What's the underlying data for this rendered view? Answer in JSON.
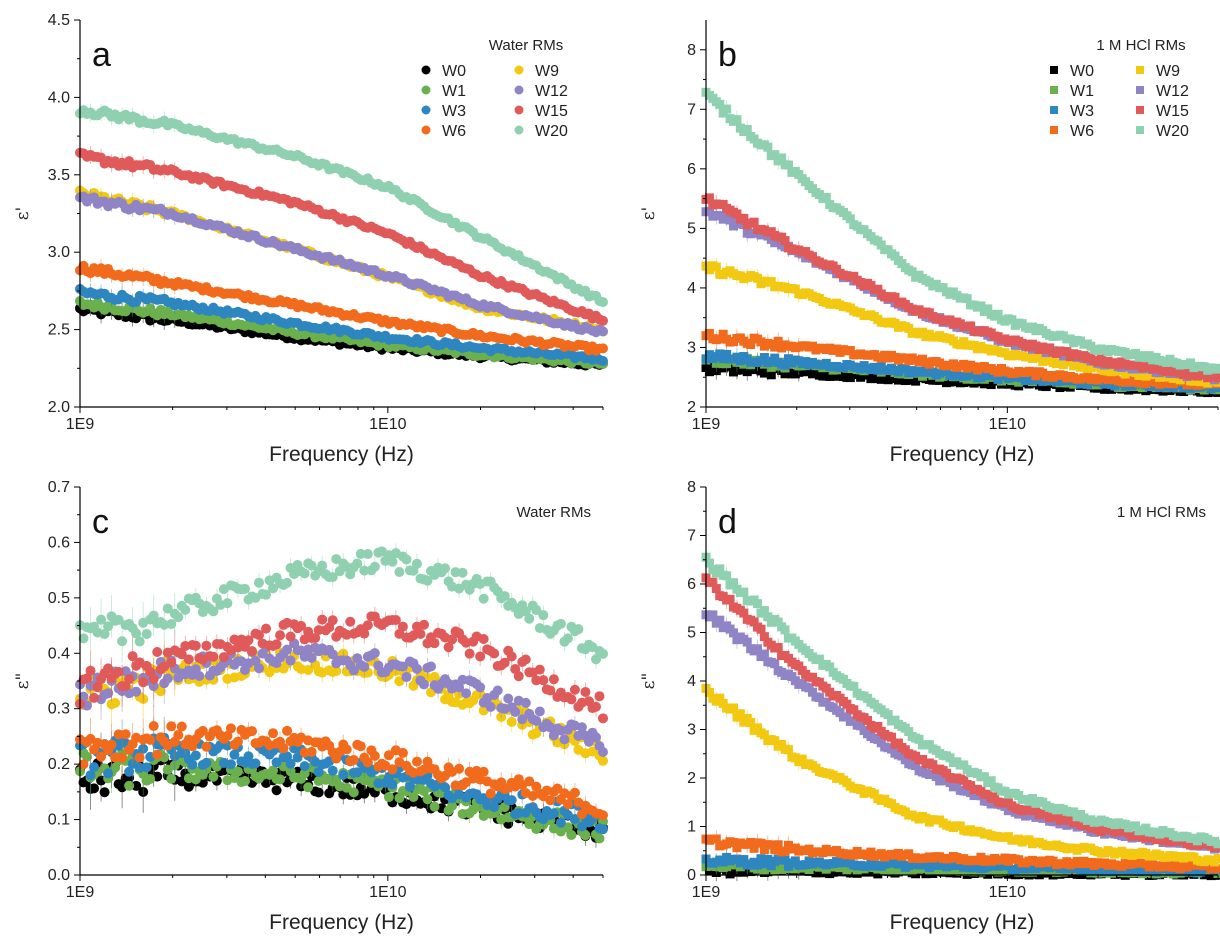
{
  "chart_data": [
    {
      "panel_label": "a",
      "type": "scatter",
      "marker": "circle",
      "x_scale": "log",
      "xlim": [
        1000000000.0,
        50000000000.0
      ],
      "ylim": [
        2.0,
        4.5
      ],
      "xlabel": "Frequency (Hz)",
      "ylabel": "ε'",
      "x_ticks": [
        1000000000.0,
        10000000000.0
      ],
      "x_tick_labels": [
        "1E9",
        "1E10"
      ],
      "y_ticks": [
        2.0,
        2.5,
        3.0,
        3.5,
        4.0,
        4.5
      ],
      "y_tick_labels": [
        "2.0",
        "2.5",
        "3.0",
        "3.5",
        "4.0",
        "4.5"
      ],
      "legend_title": "Water RMs",
      "legend_position": "top-right",
      "series": [
        {
          "name": "W0",
          "color": "#000000",
          "x": [
            1000000000.0,
            2000000000.0,
            5000000000.0,
            10000000000.0,
            20000000000.0,
            50000000000.0
          ],
          "y": [
            2.63,
            2.56,
            2.45,
            2.38,
            2.33,
            2.27
          ]
        },
        {
          "name": "W1",
          "color": "#6ab04c",
          "x": [
            1000000000.0,
            2000000000.0,
            5000000000.0,
            10000000000.0,
            20000000000.0,
            50000000000.0
          ],
          "y": [
            2.67,
            2.6,
            2.48,
            2.4,
            2.34,
            2.28
          ]
        },
        {
          "name": "W3",
          "color": "#2e86c1",
          "x": [
            1000000000.0,
            2000000000.0,
            5000000000.0,
            10000000000.0,
            20000000000.0,
            50000000000.0
          ],
          "y": [
            2.74,
            2.67,
            2.54,
            2.45,
            2.38,
            2.31
          ]
        },
        {
          "name": "W6",
          "color": "#f26b1d",
          "x": [
            1000000000.0,
            2000000000.0,
            5000000000.0,
            10000000000.0,
            20000000000.0,
            50000000000.0
          ],
          "y": [
            2.9,
            2.8,
            2.66,
            2.55,
            2.46,
            2.37
          ]
        },
        {
          "name": "W9",
          "color": "#f2c811",
          "x": [
            1000000000.0,
            2000000000.0,
            5000000000.0,
            10000000000.0,
            20000000000.0,
            50000000000.0
          ],
          "y": [
            3.38,
            3.25,
            3.02,
            2.84,
            2.64,
            2.5
          ]
        },
        {
          "name": "W12",
          "color": "#8f84c6",
          "x": [
            1000000000.0,
            2000000000.0,
            5000000000.0,
            10000000000.0,
            20000000000.0,
            50000000000.0
          ],
          "y": [
            3.35,
            3.25,
            3.02,
            2.85,
            2.66,
            2.48
          ]
        },
        {
          "name": "W15",
          "color": "#e05a5a",
          "x": [
            1000000000.0,
            2000000000.0,
            5000000000.0,
            10000000000.0,
            20000000000.0,
            50000000000.0
          ],
          "y": [
            3.62,
            3.52,
            3.32,
            3.12,
            2.85,
            2.56
          ]
        },
        {
          "name": "W20",
          "color": "#8fd0b0",
          "x": [
            1000000000.0,
            2000000000.0,
            5000000000.0,
            10000000000.0,
            20000000000.0,
            50000000000.0
          ],
          "y": [
            3.92,
            3.82,
            3.62,
            3.42,
            3.1,
            2.68
          ]
        }
      ]
    },
    {
      "panel_label": "b",
      "type": "scatter",
      "marker": "square",
      "x_scale": "log",
      "xlim": [
        1000000000.0,
        50000000000.0
      ],
      "ylim": [
        2,
        8.5
      ],
      "xlabel": "Frequency (Hz)",
      "ylabel": "ε'",
      "x_ticks": [
        1000000000.0,
        10000000000.0
      ],
      "x_tick_labels": [
        "1E9",
        "1E10"
      ],
      "y_ticks": [
        2,
        3,
        4,
        5,
        6,
        7,
        8
      ],
      "y_tick_labels": [
        "2",
        "3",
        "4",
        "5",
        "6",
        "7",
        "8"
      ],
      "legend_title": "1 M HCl RMs",
      "legend_position": "top-right",
      "series": [
        {
          "name": "W0",
          "color": "#000000",
          "x": [
            1000000000.0,
            2000000000.0,
            5000000000.0,
            10000000000.0,
            20000000000.0,
            50000000000.0
          ],
          "y": [
            2.65,
            2.58,
            2.47,
            2.4,
            2.33,
            2.27
          ]
        },
        {
          "name": "W1",
          "color": "#6ab04c",
          "x": [
            1000000000.0,
            2000000000.0,
            5000000000.0,
            10000000000.0,
            20000000000.0,
            50000000000.0
          ],
          "y": [
            2.8,
            2.7,
            2.56,
            2.46,
            2.38,
            2.31
          ]
        },
        {
          "name": "W3",
          "color": "#2e86c1",
          "x": [
            1000000000.0,
            2000000000.0,
            5000000000.0,
            10000000000.0,
            20000000000.0,
            50000000000.0
          ],
          "y": [
            2.85,
            2.75,
            2.6,
            2.49,
            2.4,
            2.33
          ]
        },
        {
          "name": "W6",
          "color": "#f26b1d",
          "x": [
            1000000000.0,
            2000000000.0,
            5000000000.0,
            10000000000.0,
            20000000000.0,
            50000000000.0
          ],
          "y": [
            3.2,
            3.02,
            2.78,
            2.6,
            2.47,
            2.37
          ]
        },
        {
          "name": "W9",
          "color": "#f2c811",
          "x": [
            1000000000.0,
            2000000000.0,
            5000000000.0,
            10000000000.0,
            20000000000.0,
            50000000000.0
          ],
          "y": [
            4.35,
            3.95,
            3.25,
            2.9,
            2.64,
            2.42
          ]
        },
        {
          "name": "W12",
          "color": "#8f84c6",
          "x": [
            1000000000.0,
            2000000000.0,
            5000000000.0,
            10000000000.0,
            20000000000.0,
            50000000000.0
          ],
          "y": [
            5.3,
            4.6,
            3.6,
            3.1,
            2.75,
            2.48
          ]
        },
        {
          "name": "W15",
          "color": "#e05a5a",
          "x": [
            1000000000.0,
            2000000000.0,
            5000000000.0,
            10000000000.0,
            20000000000.0,
            50000000000.0
          ],
          "y": [
            5.5,
            4.65,
            3.62,
            3.12,
            2.78,
            2.5
          ]
        },
        {
          "name": "W20",
          "color": "#8fd0b0",
          "x": [
            1000000000.0,
            2000000000.0,
            5000000000.0,
            10000000000.0,
            20000000000.0,
            50000000000.0
          ],
          "y": [
            7.25,
            5.9,
            4.2,
            3.45,
            2.98,
            2.62
          ]
        }
      ]
    },
    {
      "panel_label": "c",
      "type": "scatter",
      "marker": "circle",
      "x_scale": "log",
      "xlim": [
        1000000000.0,
        50000000000.0
      ],
      "ylim": [
        0.0,
        0.7
      ],
      "xlabel": "Frequency (Hz)",
      "ylabel": "ε\"",
      "x_ticks": [
        1000000000.0,
        10000000000.0
      ],
      "x_tick_labels": [
        "1E9",
        "1E10"
      ],
      "y_ticks": [
        0.0,
        0.1,
        0.2,
        0.3,
        0.4,
        0.5,
        0.6,
        0.7
      ],
      "y_tick_labels": [
        "0.0",
        "0.1",
        "0.2",
        "0.3",
        "0.4",
        "0.5",
        "0.6",
        "0.7"
      ],
      "legend_title": "Water RMs",
      "legend_position": "top-right",
      "series": [
        {
          "name": "W0",
          "color": "#000000",
          "x": [
            1000000000.0,
            2000000000.0,
            5000000000.0,
            10000000000.0,
            20000000000.0,
            50000000000.0
          ],
          "y": [
            0.17,
            0.18,
            0.17,
            0.15,
            0.12,
            0.08
          ]
        },
        {
          "name": "W1",
          "color": "#6ab04c",
          "x": [
            1000000000.0,
            2000000000.0,
            5000000000.0,
            10000000000.0,
            20000000000.0,
            50000000000.0
          ],
          "y": [
            0.19,
            0.19,
            0.18,
            0.16,
            0.12,
            0.08
          ]
        },
        {
          "name": "W3",
          "color": "#2e86c1",
          "x": [
            1000000000.0,
            2000000000.0,
            5000000000.0,
            10000000000.0,
            20000000000.0,
            50000000000.0
          ],
          "y": [
            0.21,
            0.22,
            0.21,
            0.18,
            0.14,
            0.1
          ]
        },
        {
          "name": "W6",
          "color": "#f26b1d",
          "x": [
            1000000000.0,
            2000000000.0,
            5000000000.0,
            10000000000.0,
            20000000000.0,
            50000000000.0
          ],
          "y": [
            0.23,
            0.25,
            0.24,
            0.21,
            0.17,
            0.12
          ]
        },
        {
          "name": "W9",
          "color": "#f2c811",
          "x": [
            1000000000.0,
            2000000000.0,
            5000000000.0,
            10000000000.0,
            20000000000.0,
            50000000000.0
          ],
          "y": [
            0.32,
            0.36,
            0.39,
            0.37,
            0.31,
            0.22
          ]
        },
        {
          "name": "W12",
          "color": "#8f84c6",
          "x": [
            1000000000.0,
            2000000000.0,
            5000000000.0,
            10000000000.0,
            20000000000.0,
            50000000000.0
          ],
          "y": [
            0.33,
            0.37,
            0.4,
            0.38,
            0.33,
            0.23
          ]
        },
        {
          "name": "W15",
          "color": "#e05a5a",
          "x": [
            1000000000.0,
            2000000000.0,
            5000000000.0,
            10000000000.0,
            20000000000.0,
            50000000000.0
          ],
          "y": [
            0.34,
            0.39,
            0.44,
            0.45,
            0.41,
            0.3
          ]
        },
        {
          "name": "W20",
          "color": "#8fd0b0",
          "x": [
            1000000000.0,
            2000000000.0,
            5000000000.0,
            10000000000.0,
            20000000000.0,
            50000000000.0
          ],
          "y": [
            0.42,
            0.47,
            0.54,
            0.57,
            0.52,
            0.4
          ]
        }
      ]
    },
    {
      "panel_label": "d",
      "type": "scatter",
      "marker": "square",
      "x_scale": "log",
      "xlim": [
        1000000000.0,
        50000000000.0
      ],
      "ylim": [
        0,
        8
      ],
      "xlabel": "Frequency (Hz)",
      "ylabel": "ε\"",
      "x_ticks": [
        1000000000.0,
        10000000000.0
      ],
      "x_tick_labels": [
        "1E9",
        "1E10"
      ],
      "y_ticks": [
        0,
        1,
        2,
        3,
        4,
        5,
        6,
        7,
        8
      ],
      "y_tick_labels": [
        "0",
        "1",
        "2",
        "3",
        "4",
        "5",
        "6",
        "7",
        "8"
      ],
      "legend_title": "1 M HCl RMs",
      "legend_position": "top-right",
      "series": [
        {
          "name": "W0",
          "color": "#000000",
          "x": [
            1000000000.0,
            2000000000.0,
            5000000000.0,
            10000000000.0,
            20000000000.0,
            50000000000.0
          ],
          "y": [
            0.1,
            0.08,
            0.06,
            0.05,
            0.04,
            0.03
          ]
        },
        {
          "name": "W1",
          "color": "#6ab04c",
          "x": [
            1000000000.0,
            2000000000.0,
            5000000000.0,
            10000000000.0,
            20000000000.0,
            50000000000.0
          ],
          "y": [
            0.2,
            0.16,
            0.12,
            0.1,
            0.08,
            0.06
          ]
        },
        {
          "name": "W3",
          "color": "#2e86c1",
          "x": [
            1000000000.0,
            2000000000.0,
            5000000000.0,
            10000000000.0,
            20000000000.0,
            50000000000.0
          ],
          "y": [
            0.3,
            0.25,
            0.2,
            0.16,
            0.12,
            0.09
          ]
        },
        {
          "name": "W6",
          "color": "#f26b1d",
          "x": [
            1000000000.0,
            2000000000.0,
            5000000000.0,
            10000000000.0,
            20000000000.0,
            50000000000.0
          ],
          "y": [
            0.7,
            0.52,
            0.38,
            0.3,
            0.23,
            0.16
          ]
        },
        {
          "name": "W9",
          "color": "#f2c811",
          "x": [
            1000000000.0,
            2000000000.0,
            5000000000.0,
            10000000000.0,
            20000000000.0,
            50000000000.0
          ],
          "y": [
            3.8,
            2.4,
            1.2,
            0.75,
            0.5,
            0.3
          ]
        },
        {
          "name": "W12",
          "color": "#8f84c6",
          "x": [
            1000000000.0,
            2000000000.0,
            5000000000.0,
            10000000000.0,
            20000000000.0,
            50000000000.0
          ],
          "y": [
            5.4,
            4.0,
            2.2,
            1.35,
            0.9,
            0.55
          ]
        },
        {
          "name": "W15",
          "color": "#e05a5a",
          "x": [
            1000000000.0,
            2000000000.0,
            5000000000.0,
            10000000000.0,
            20000000000.0,
            50000000000.0
          ],
          "y": [
            6.1,
            4.3,
            2.4,
            1.45,
            0.95,
            0.58
          ]
        },
        {
          "name": "W20",
          "color": "#8fd0b0",
          "x": [
            1000000000.0,
            2000000000.0,
            5000000000.0,
            10000000000.0,
            20000000000.0,
            50000000000.0
          ],
          "y": [
            6.5,
            4.8,
            2.8,
            1.7,
            1.1,
            0.68
          ]
        }
      ]
    }
  ]
}
